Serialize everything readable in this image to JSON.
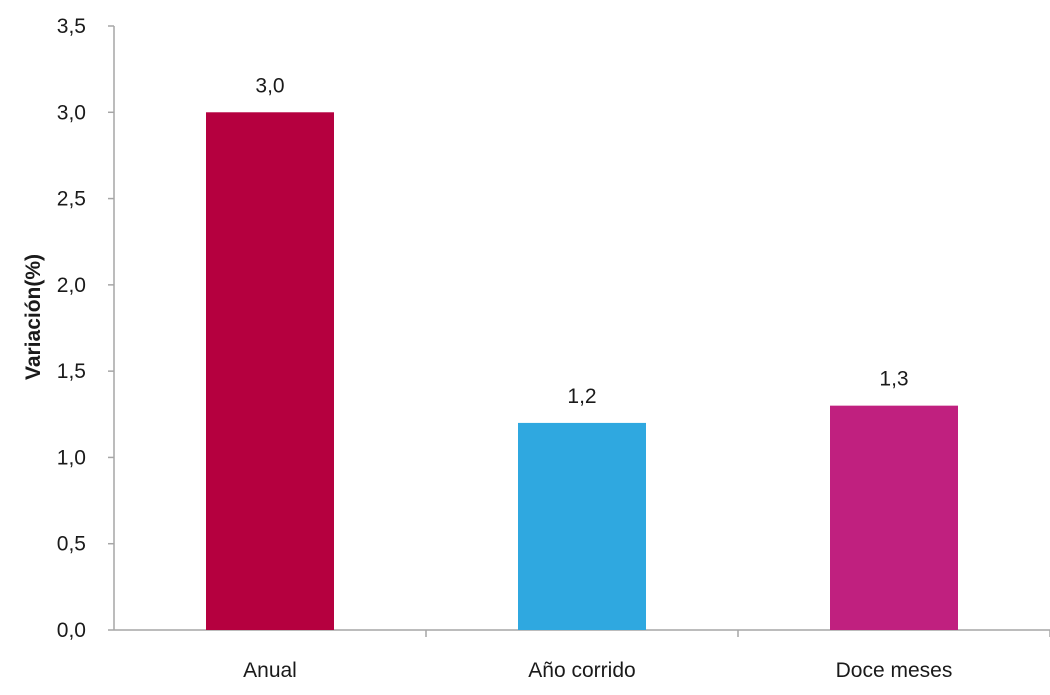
{
  "chart_data": {
    "type": "bar",
    "categories": [
      "Anual",
      "Año corrido",
      "Doce meses"
    ],
    "values": [
      3.0,
      1.2,
      1.3
    ],
    "value_labels": [
      "3,0",
      "1,2",
      "1,3"
    ],
    "colors": [
      "#b5003f",
      "#2fa8e0",
      "#c0207f"
    ],
    "title": "",
    "xlabel": "",
    "ylabel": "Variación(%)",
    "ylim": [
      0,
      3.5
    ],
    "yticks": [
      0,
      0.5,
      1.0,
      1.5,
      2.0,
      2.5,
      3.0,
      3.5
    ],
    "ytick_labels": [
      "0,0",
      "0,5",
      "1,0",
      "1,5",
      "2,0",
      "2,5",
      "3,0",
      "3,5"
    ],
    "grid": false,
    "legend": "none",
    "axis_color": "#a6a6a6"
  }
}
